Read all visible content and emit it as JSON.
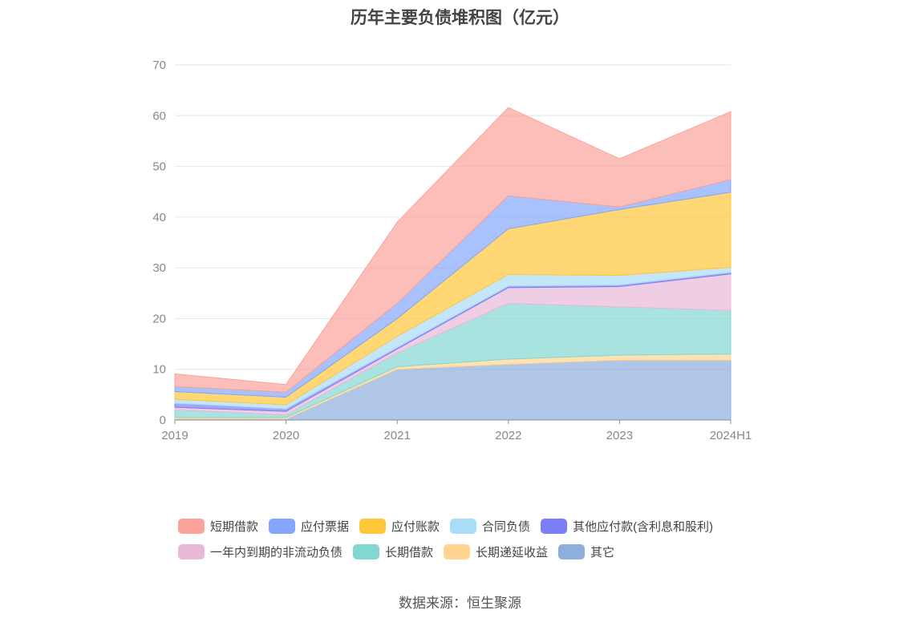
{
  "title": "历年主要负债堆积图（亿元）",
  "source": "数据来源：恒生聚源",
  "chart_data": {
    "type": "area",
    "stacked": true,
    "categories": [
      "2019",
      "2020",
      "2021",
      "2022",
      "2023",
      "2024H1"
    ],
    "ylim": [
      0,
      70
    ],
    "yticks": [
      0,
      10,
      20,
      30,
      40,
      50,
      60,
      70
    ],
    "grid": true,
    "legend_position": "bottom",
    "series": [
      {
        "name": "其它",
        "color": "#8eaedc",
        "values": [
          0.2,
          0.2,
          10.0,
          11.0,
          11.8,
          11.8
        ]
      },
      {
        "name": "长期递延收益",
        "color": "#ffd591",
        "values": [
          0.3,
          0.3,
          0.5,
          1.0,
          1.0,
          1.2
        ]
      },
      {
        "name": "长期借款",
        "color": "#83d7d3",
        "values": [
          1.5,
          0.5,
          2.7,
          11.0,
          9.5,
          8.6
        ]
      },
      {
        "name": "一年内到期的非流动负债",
        "color": "#e8b9d9",
        "values": [
          0.5,
          0.7,
          0.8,
          3.1,
          4.0,
          7.2
        ]
      },
      {
        "name": "其他应付款(含利息和股利)",
        "color": "#7b7ff5",
        "values": [
          0.8,
          0.5,
          0.3,
          0.3,
          0.3,
          0.3
        ]
      },
      {
        "name": "合同负债",
        "color": "#a9dcf7",
        "values": [
          0.8,
          0.8,
          2.2,
          2.3,
          1.9,
          1.0
        ]
      },
      {
        "name": "应付账款",
        "color": "#ffc73a",
        "values": [
          1.5,
          1.5,
          3.5,
          9.0,
          13.0,
          14.8
        ]
      },
      {
        "name": "应付票据",
        "color": "#84a6fb",
        "values": [
          1.0,
          1.0,
          3.0,
          6.5,
          0.5,
          2.5
        ]
      },
      {
        "name": "短期借款",
        "color": "#fba39a",
        "values": [
          2.5,
          1.5,
          16.0,
          17.4,
          9.5,
          13.4
        ]
      }
    ]
  },
  "legend": {
    "rows": [
      [
        "短期借款",
        "应付票据",
        "应付账款",
        "合同负债",
        "其他应付款(含利息和股利)"
      ],
      [
        "一年内到期的非流动负债",
        "长期借款",
        "长期递延收益",
        "其它"
      ]
    ]
  }
}
